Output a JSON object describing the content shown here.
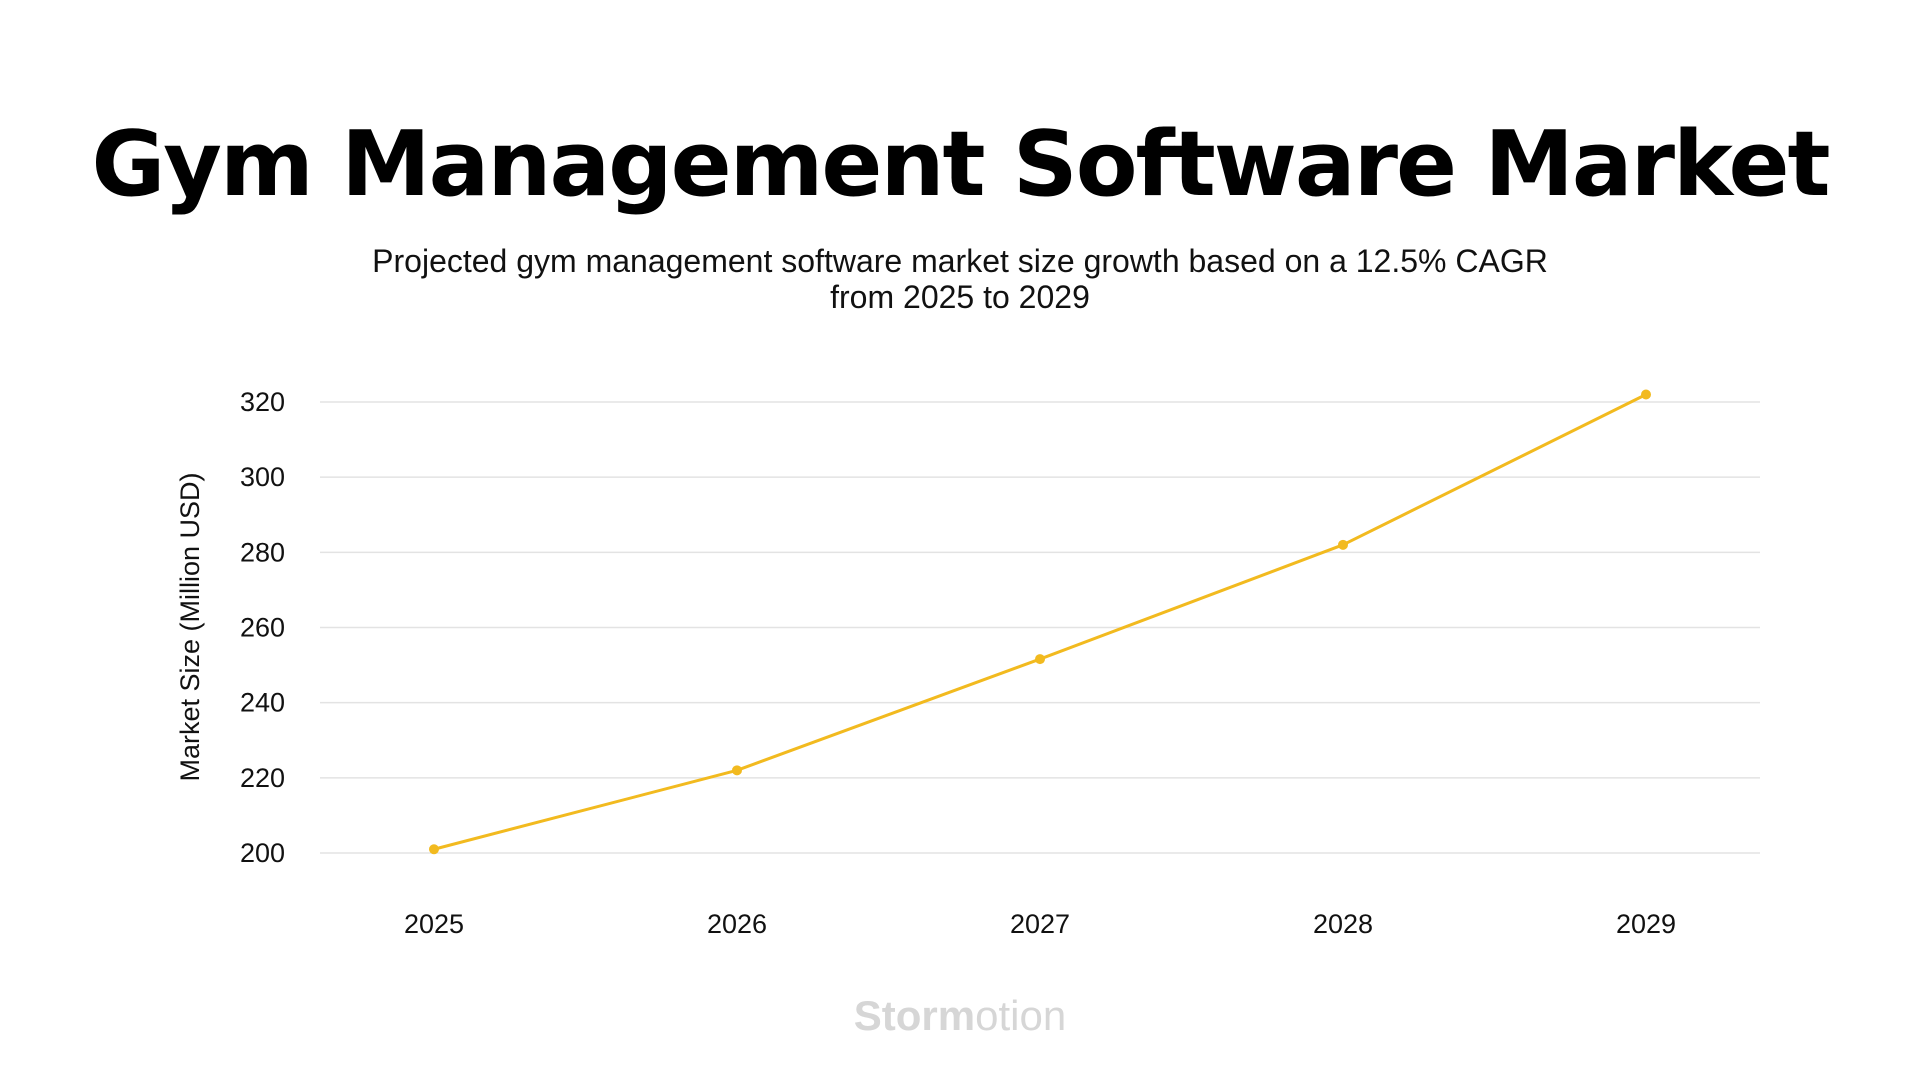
{
  "title": "Gym Management Software Market",
  "subtitle_line1": "Projected gym management software market size growth based on a 12.5% CAGR",
  "subtitle_line2": "from 2025 to 2029",
  "logo": {
    "part_bold": "Storm",
    "part_light": "otion"
  },
  "colors": {
    "line": "#F2BA1F",
    "grid": "#E3E3E3",
    "text": "#111111",
    "logo": "#D6D6D6"
  },
  "chart_data": {
    "type": "line",
    "title": "Gym Management Software Market",
    "subtitle": "Projected gym management software market size growth based on a 12.5% CAGR from 2025 to 2029",
    "xlabel": "",
    "ylabel": "Market Size (Million USD)",
    "x": [
      "2025",
      "2026",
      "2027",
      "2028",
      "2029"
    ],
    "series": [
      {
        "values": [
          201,
          222,
          251.6,
          282,
          322
        ]
      }
    ],
    "yticks": [
      200,
      220,
      240,
      260,
      280,
      300,
      320
    ],
    "ylim": [
      200,
      320
    ],
    "grid": "horizontal",
    "legend": "none"
  }
}
